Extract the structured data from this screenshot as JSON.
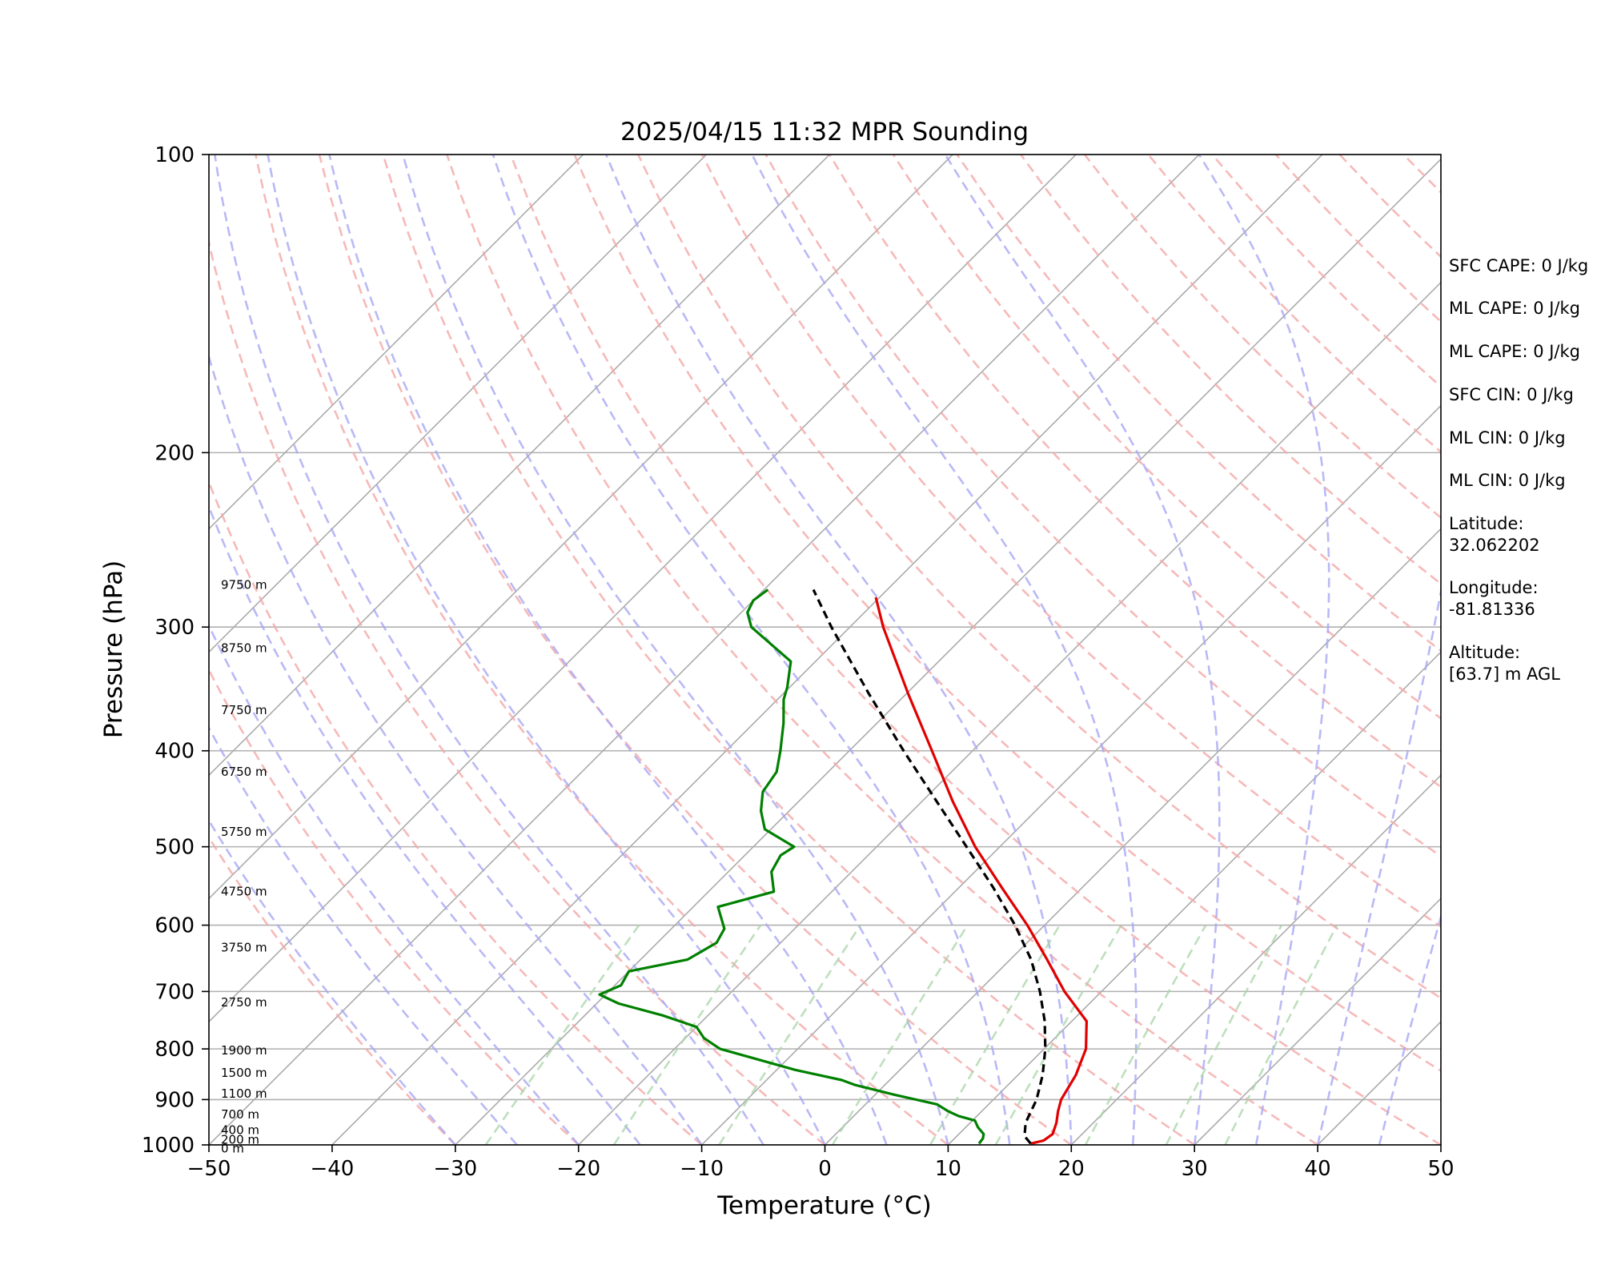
{
  "chart_data": {
    "type": "line",
    "title": "2025/04/15 11:32 MPR Sounding",
    "xlabel": "Temperature (°C)",
    "ylabel": "Pressure (hPa)",
    "xlim": [
      -50,
      50
    ],
    "ylim": [
      1000,
      100
    ],
    "y_scale": "log",
    "grid": true,
    "x_ticks": [
      "−50",
      "−40",
      "−30",
      "−20",
      "−10",
      "0",
      "10",
      "20",
      "30",
      "40",
      "50"
    ],
    "x_tick_values": [
      -50,
      -40,
      -30,
      -20,
      -10,
      0,
      10,
      20,
      30,
      40,
      50
    ],
    "y_ticks": [
      "1000",
      "900",
      "800",
      "700",
      "600",
      "500",
      "400",
      "300",
      "200",
      "100"
    ],
    "y_tick_values": [
      1000,
      900,
      800,
      700,
      600,
      500,
      400,
      300,
      200,
      100
    ],
    "series": [
      {
        "color": "#e00000",
        "style": "solid",
        "points": [
          [
            997,
            16.6
          ],
          [
            990,
            17.4
          ],
          [
            975,
            17.6
          ],
          [
            950,
            17.0
          ],
          [
            925,
            16.2
          ],
          [
            900,
            15.5
          ],
          [
            850,
            14.7
          ],
          [
            800,
            13.4
          ],
          [
            750,
            11.2
          ],
          [
            700,
            7.0
          ],
          [
            650,
            3.0
          ],
          [
            600,
            -1.4
          ],
          [
            550,
            -6.5
          ],
          [
            500,
            -12.0
          ],
          [
            450,
            -17.5
          ],
          [
            400,
            -23.3
          ],
          [
            350,
            -29.9
          ],
          [
            300,
            -37.3
          ],
          [
            280,
            -40.3
          ]
        ]
      },
      {
        "color": "#008000",
        "style": "solid",
        "points": [
          [
            997,
            12.4
          ],
          [
            985,
            12.3
          ],
          [
            975,
            12.0
          ],
          [
            960,
            11.0
          ],
          [
            945,
            10.2
          ],
          [
            935,
            8.5
          ],
          [
            925,
            7.3
          ],
          [
            910,
            5.8
          ],
          [
            890,
            1.6
          ],
          [
            870,
            -2.4
          ],
          [
            860,
            -3.9
          ],
          [
            840,
            -8.5
          ],
          [
            800,
            -16.3
          ],
          [
            780,
            -18.5
          ],
          [
            760,
            -20.0
          ],
          [
            740,
            -23.7
          ],
          [
            720,
            -28.2
          ],
          [
            705,
            -30.5
          ],
          [
            690,
            -29.5
          ],
          [
            668,
            -30.0
          ],
          [
            650,
            -26.2
          ],
          [
            625,
            -25.2
          ],
          [
            605,
            -25.7
          ],
          [
            575,
            -28.0
          ],
          [
            555,
            -24.7
          ],
          [
            530,
            -26.5
          ],
          [
            510,
            -27.1
          ],
          [
            500,
            -26.7
          ],
          [
            480,
            -30.5
          ],
          [
            460,
            -32.3
          ],
          [
            440,
            -33.7
          ],
          [
            420,
            -34.2
          ],
          [
            400,
            -35.6
          ],
          [
            375,
            -37.6
          ],
          [
            355,
            -39.5
          ],
          [
            345,
            -40.2
          ],
          [
            325,
            -42.0
          ],
          [
            300,
            -48.0
          ],
          [
            290,
            -49.5
          ],
          [
            282,
            -50.0
          ],
          [
            275,
            -49.7
          ]
        ]
      },
      {
        "color": "#000000",
        "style": "dashed",
        "points": [
          [
            997,
            16.6
          ],
          [
            980,
            15.5
          ],
          [
            950,
            14.5
          ],
          [
            900,
            13.5
          ],
          [
            850,
            12.0
          ],
          [
            800,
            10.1
          ],
          [
            750,
            7.8
          ],
          [
            700,
            5.0
          ],
          [
            650,
            1.7
          ],
          [
            600,
            -2.4
          ],
          [
            550,
            -7.2
          ],
          [
            500,
            -12.7
          ],
          [
            450,
            -18.8
          ],
          [
            400,
            -25.6
          ],
          [
            350,
            -33.1
          ],
          [
            300,
            -41.5
          ],
          [
            275,
            -46.0
          ]
        ]
      }
    ],
    "height_labels": [
      {
        "label": "9750 m",
        "p": 272
      },
      {
        "label": "8750 m",
        "p": 315
      },
      {
        "label": "7750 m",
        "p": 364
      },
      {
        "label": "6750 m",
        "p": 420
      },
      {
        "label": "5750 m",
        "p": 483
      },
      {
        "label": "4750 m",
        "p": 555
      },
      {
        "label": "3750 m",
        "p": 632
      },
      {
        "label": "2750 m",
        "p": 718
      },
      {
        "label": "1900 m",
        "p": 803
      },
      {
        "label": "1500 m",
        "p": 846
      },
      {
        "label": "1100 m",
        "p": 888
      },
      {
        "label": "700 m",
        "p": 932
      },
      {
        "label": "400 m",
        "p": 966
      },
      {
        "label": "200 m",
        "p": 988
      },
      {
        "label": "0 m",
        "p": 1008
      }
    ]
  },
  "info": [
    "SFC CAPE: 0 J/kg",
    "ML CAPE: 0 J/kg",
    "ML CAPE: 0 J/kg",
    "SFC CIN: 0 J/kg",
    "ML CIN: 0 J/kg",
    "ML CIN: 0 J/kg",
    "Latitude:",
    "32.062202",
    "Longitude:",
    "-81.81336",
    "Altitude:",
    "[63.7] m AGL"
  ]
}
